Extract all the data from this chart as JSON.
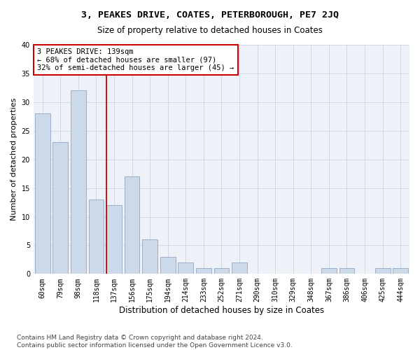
{
  "title1": "3, PEAKES DRIVE, COATES, PETERBOROUGH, PE7 2JQ",
  "title2": "Size of property relative to detached houses in Coates",
  "xlabel": "Distribution of detached houses by size in Coates",
  "ylabel": "Number of detached properties",
  "categories": [
    "60sqm",
    "79sqm",
    "98sqm",
    "118sqm",
    "137sqm",
    "156sqm",
    "175sqm",
    "194sqm",
    "214sqm",
    "233sqm",
    "252sqm",
    "271sqm",
    "290sqm",
    "310sqm",
    "329sqm",
    "348sqm",
    "367sqm",
    "386sqm",
    "406sqm",
    "425sqm",
    "444sqm"
  ],
  "values": [
    28,
    23,
    32,
    13,
    12,
    17,
    6,
    3,
    2,
    1,
    1,
    2,
    0,
    0,
    0,
    0,
    1,
    1,
    0,
    1,
    1
  ],
  "bar_color": "#ccd9e8",
  "bar_edgecolor": "#9ab0c8",
  "annotation_line1": "3 PEAKES DRIVE: 139sqm",
  "annotation_line2": "← 68% of detached houses are smaller (97)",
  "annotation_line3": "32% of semi-detached houses are larger (45) →",
  "annotation_box_color": "#ffffff",
  "annotation_box_edgecolor": "#cc0000",
  "vline_color": "#cc0000",
  "vline_x_index": 4,
  "ylim": [
    0,
    40
  ],
  "yticks": [
    0,
    5,
    10,
    15,
    20,
    25,
    30,
    35,
    40
  ],
  "grid_color": "#ccd8e8",
  "bg_color": "#eef2f8",
  "footer1": "Contains HM Land Registry data © Crown copyright and database right 2024.",
  "footer2": "Contains public sector information licensed under the Open Government Licence v3.0.",
  "title1_fontsize": 9.5,
  "title2_fontsize": 8.5,
  "xlabel_fontsize": 8.5,
  "ylabel_fontsize": 8,
  "tick_fontsize": 7,
  "annotation_fontsize": 7.5,
  "footer_fontsize": 6.5
}
